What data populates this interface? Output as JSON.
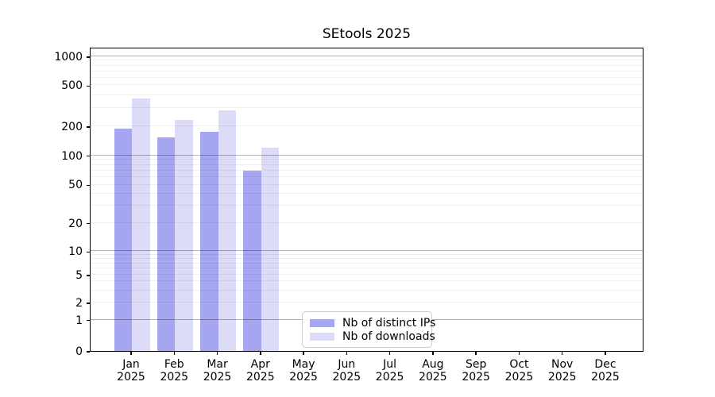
{
  "chart_data": {
    "type": "bar",
    "title": "SEtools 2025",
    "xlabel": "",
    "ylabel": "",
    "categories": [
      "Jan 2025",
      "Feb 2025",
      "Mar 2025",
      "Apr 2025",
      "May 2025",
      "Jun 2025",
      "Jul 2025",
      "Aug 2025",
      "Sep 2025",
      "Oct 2025",
      "Nov 2025",
      "Dec 2025"
    ],
    "series": [
      {
        "name": "Nb of distinct IPs",
        "color": "#a5a5f0",
        "values": [
          190,
          155,
          175,
          70,
          null,
          null,
          null,
          null,
          null,
          null,
          null,
          null
        ]
      },
      {
        "name": "Nb of downloads",
        "color": "#dcdcf8",
        "values": [
          370,
          230,
          285,
          120,
          null,
          null,
          null,
          null,
          null,
          null,
          null,
          null
        ]
      }
    ],
    "yticks": [
      0,
      1,
      2,
      5,
      10,
      20,
      50,
      100,
      200,
      500,
      1000
    ],
    "yaxis_scale": "symlog",
    "ylim": [
      0,
      1100
    ],
    "grid": "horizontal major and minor gridlines",
    "legend_position": "lower center inside plot"
  }
}
